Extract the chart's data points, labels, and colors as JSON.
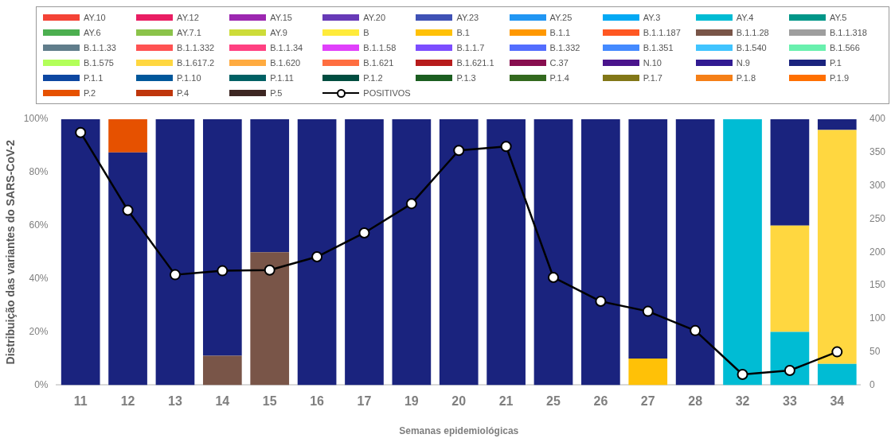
{
  "chart_data": {
    "type": "bar",
    "stacked": true,
    "xlabel": "Semanas epidemiológicas",
    "ylabel": "Distribuição das variantes do SARS-CoV-2",
    "legend": "top",
    "grid": false,
    "categories": [
      "11",
      "12",
      "13",
      "14",
      "15",
      "16",
      "17",
      "19",
      "20",
      "21",
      "25",
      "26",
      "27",
      "28",
      "32",
      "33",
      "34"
    ],
    "ylim": [
      0,
      100
    ],
    "yticks": [
      {
        "value": 0,
        "label": "0%"
      },
      {
        "value": 20,
        "label": "20%"
      },
      {
        "value": 40,
        "label": "40%"
      },
      {
        "value": 60,
        "label": "60%"
      },
      {
        "value": 80,
        "label": "80%"
      },
      {
        "value": 100,
        "label": "100%"
      }
    ],
    "y2lim": [
      0,
      400
    ],
    "y2ticks": [
      0,
      50,
      100,
      150,
      200,
      250,
      300,
      350,
      400
    ],
    "series": [
      {
        "name": "AY.10",
        "color": "#f44336",
        "values": [
          null,
          null,
          null,
          null,
          null,
          null,
          null,
          null,
          null,
          null,
          null,
          null,
          null,
          null,
          null,
          null,
          null
        ]
      },
      {
        "name": "AY.12",
        "color": "#e91e63",
        "values": [
          null,
          null,
          null,
          null,
          null,
          null,
          null,
          null,
          null,
          null,
          null,
          null,
          null,
          null,
          null,
          null,
          null
        ]
      },
      {
        "name": "AY.15",
        "color": "#9c27b0",
        "values": [
          null,
          null,
          null,
          null,
          null,
          null,
          null,
          null,
          null,
          null,
          null,
          null,
          null,
          null,
          null,
          null,
          null
        ]
      },
      {
        "name": "AY.20",
        "color": "#673ab7",
        "values": [
          null,
          null,
          null,
          null,
          null,
          null,
          null,
          null,
          null,
          null,
          null,
          null,
          null,
          null,
          null,
          null,
          null
        ]
      },
      {
        "name": "AY.23",
        "color": "#3f51b5",
        "values": [
          null,
          null,
          null,
          null,
          null,
          null,
          null,
          null,
          null,
          null,
          null,
          null,
          null,
          null,
          null,
          null,
          null
        ]
      },
      {
        "name": "AY.25",
        "color": "#2196f3",
        "values": [
          null,
          null,
          null,
          null,
          null,
          null,
          null,
          null,
          null,
          null,
          null,
          null,
          null,
          null,
          null,
          null,
          null
        ]
      },
      {
        "name": "AY.3",
        "color": "#03a9f4",
        "values": [
          null,
          null,
          null,
          null,
          null,
          null,
          null,
          null,
          null,
          null,
          null,
          null,
          null,
          null,
          null,
          null,
          null
        ]
      },
      {
        "name": "AY.4",
        "color": "#00bcd4",
        "values": [
          null,
          null,
          null,
          null,
          null,
          null,
          null,
          null,
          null,
          null,
          null,
          null,
          null,
          null,
          100,
          20,
          8
        ]
      },
      {
        "name": "AY.5",
        "color": "#009688",
        "values": [
          null,
          null,
          null,
          null,
          null,
          null,
          null,
          null,
          null,
          null,
          null,
          null,
          null,
          null,
          null,
          null,
          null
        ]
      },
      {
        "name": "AY.6",
        "color": "#4caf50",
        "values": [
          null,
          null,
          null,
          null,
          null,
          null,
          null,
          null,
          null,
          null,
          null,
          null,
          null,
          null,
          null,
          null,
          null
        ]
      },
      {
        "name": "AY.7.1",
        "color": "#8bc34a",
        "values": [
          null,
          null,
          null,
          null,
          null,
          null,
          null,
          null,
          null,
          null,
          null,
          null,
          null,
          null,
          null,
          null,
          null
        ]
      },
      {
        "name": "AY.9",
        "color": "#cddc39",
        "values": [
          null,
          null,
          null,
          null,
          null,
          null,
          null,
          null,
          null,
          null,
          null,
          null,
          null,
          null,
          null,
          null,
          null
        ]
      },
      {
        "name": "B",
        "color": "#ffeb3b",
        "values": [
          null,
          null,
          null,
          null,
          null,
          null,
          null,
          null,
          null,
          null,
          null,
          null,
          null,
          null,
          null,
          null,
          null
        ]
      },
      {
        "name": "B.1",
        "color": "#ffc107",
        "values": [
          null,
          null,
          null,
          null,
          null,
          null,
          null,
          null,
          null,
          null,
          null,
          null,
          10,
          null,
          null,
          null,
          null
        ]
      },
      {
        "name": "B.1.1",
        "color": "#ff9800",
        "values": [
          null,
          null,
          null,
          null,
          null,
          null,
          null,
          null,
          null,
          null,
          null,
          null,
          null,
          null,
          null,
          null,
          null
        ]
      },
      {
        "name": "B.1.1.187",
        "color": "#ff5722",
        "values": [
          null,
          null,
          null,
          null,
          null,
          null,
          null,
          null,
          null,
          null,
          null,
          null,
          null,
          null,
          null,
          null,
          null
        ]
      },
      {
        "name": "B.1.1.28",
        "color": "#795548",
        "values": [
          null,
          null,
          null,
          11,
          50,
          null,
          null,
          null,
          null,
          null,
          null,
          null,
          null,
          null,
          null,
          null,
          null
        ]
      },
      {
        "name": "B.1.1.318",
        "color": "#9e9e9e",
        "values": [
          null,
          null,
          null,
          null,
          null,
          null,
          null,
          null,
          null,
          null,
          null,
          null,
          null,
          null,
          null,
          null,
          null
        ]
      },
      {
        "name": "B.1.1.33",
        "color": "#607d8b",
        "values": [
          null,
          null,
          null,
          null,
          null,
          null,
          null,
          null,
          null,
          null,
          null,
          null,
          null,
          null,
          null,
          null,
          null
        ]
      },
      {
        "name": "B.1.1.332",
        "color": "#ff5252",
        "values": [
          null,
          null,
          null,
          null,
          null,
          null,
          null,
          null,
          null,
          null,
          null,
          null,
          null,
          null,
          null,
          null,
          null
        ]
      },
      {
        "name": "B.1.1.34",
        "color": "#ff4081",
        "values": [
          null,
          null,
          null,
          null,
          null,
          null,
          null,
          null,
          null,
          null,
          null,
          null,
          null,
          null,
          null,
          null,
          null
        ]
      },
      {
        "name": "B.1.1.58",
        "color": "#e040fb",
        "values": [
          null,
          null,
          null,
          null,
          null,
          null,
          null,
          null,
          null,
          null,
          null,
          null,
          null,
          null,
          null,
          null,
          null
        ]
      },
      {
        "name": "B.1.1.7",
        "color": "#7c4dff",
        "values": [
          null,
          null,
          null,
          null,
          null,
          null,
          null,
          null,
          null,
          null,
          null,
          null,
          null,
          null,
          null,
          null,
          null
        ]
      },
      {
        "name": "B.1.332",
        "color": "#536dfe",
        "values": [
          null,
          null,
          null,
          null,
          null,
          null,
          null,
          null,
          null,
          null,
          null,
          null,
          null,
          null,
          null,
          null,
          null
        ]
      },
      {
        "name": "B.1.351",
        "color": "#448aff",
        "values": [
          null,
          null,
          null,
          null,
          null,
          null,
          null,
          null,
          null,
          null,
          null,
          null,
          null,
          null,
          null,
          null,
          null
        ]
      },
      {
        "name": "B.1.540",
        "color": "#40c4ff",
        "values": [
          null,
          null,
          null,
          null,
          null,
          null,
          null,
          null,
          null,
          null,
          null,
          null,
          null,
          null,
          null,
          null,
          null
        ]
      },
      {
        "name": "B.1.566",
        "color": "#69f0ae",
        "values": [
          null,
          null,
          null,
          null,
          null,
          null,
          null,
          null,
          null,
          null,
          null,
          null,
          null,
          null,
          null,
          null,
          null
        ]
      },
      {
        "name": "B.1.575",
        "color": "#b2ff59",
        "values": [
          null,
          null,
          null,
          null,
          null,
          null,
          null,
          null,
          null,
          null,
          null,
          null,
          null,
          null,
          null,
          null,
          null
        ]
      },
      {
        "name": "B.1.617.2",
        "color": "#ffd740",
        "values": [
          null,
          null,
          null,
          null,
          null,
          null,
          null,
          null,
          null,
          null,
          null,
          null,
          null,
          null,
          null,
          40,
          88
        ]
      },
      {
        "name": "B.1.620",
        "color": "#ffab40",
        "values": [
          null,
          null,
          null,
          null,
          null,
          null,
          null,
          null,
          null,
          null,
          null,
          null,
          null,
          null,
          null,
          null,
          null
        ]
      },
      {
        "name": "B.1.621",
        "color": "#ff6e40",
        "values": [
          null,
          null,
          null,
          null,
          null,
          null,
          null,
          null,
          null,
          null,
          null,
          null,
          null,
          null,
          null,
          null,
          null
        ]
      },
      {
        "name": "B.1.621.1",
        "color": "#b71c1c",
        "values": [
          null,
          null,
          null,
          null,
          null,
          null,
          null,
          null,
          null,
          null,
          null,
          null,
          null,
          null,
          null,
          null,
          null
        ]
      },
      {
        "name": "C.37",
        "color": "#880e4f",
        "values": [
          null,
          null,
          null,
          null,
          null,
          null,
          null,
          null,
          null,
          null,
          null,
          null,
          null,
          null,
          null,
          null,
          null
        ]
      },
      {
        "name": "N.10",
        "color": "#4a148c",
        "values": [
          null,
          null,
          null,
          null,
          null,
          null,
          null,
          null,
          null,
          null,
          null,
          null,
          null,
          null,
          null,
          null,
          null
        ]
      },
      {
        "name": "N.9",
        "color": "#311b92",
        "values": [
          null,
          null,
          null,
          null,
          null,
          null,
          null,
          null,
          null,
          null,
          null,
          null,
          null,
          null,
          null,
          null,
          null
        ]
      },
      {
        "name": "P.1",
        "color": "#1a237e",
        "values": [
          100,
          87.5,
          100,
          89,
          50,
          100,
          100,
          100,
          100,
          100,
          100,
          100,
          90,
          100,
          null,
          40,
          4
        ]
      },
      {
        "name": "P.1.1",
        "color": "#0d47a1",
        "values": [
          null,
          null,
          null,
          null,
          null,
          null,
          null,
          null,
          null,
          null,
          null,
          null,
          null,
          null,
          null,
          null,
          null
        ]
      },
      {
        "name": "P.1.10",
        "color": "#01579b",
        "values": [
          null,
          null,
          null,
          null,
          null,
          null,
          null,
          null,
          null,
          null,
          null,
          null,
          null,
          null,
          null,
          null,
          null
        ]
      },
      {
        "name": "P.1.11",
        "color": "#006064",
        "values": [
          null,
          null,
          null,
          null,
          null,
          null,
          null,
          null,
          null,
          null,
          null,
          null,
          null,
          null,
          null,
          null,
          null
        ]
      },
      {
        "name": "P.1.2",
        "color": "#004d40",
        "values": [
          null,
          null,
          null,
          null,
          null,
          null,
          null,
          null,
          null,
          null,
          null,
          null,
          null,
          null,
          null,
          null,
          null
        ]
      },
      {
        "name": "P.1.3",
        "color": "#1b5e20",
        "values": [
          null,
          null,
          null,
          null,
          null,
          null,
          null,
          null,
          null,
          null,
          null,
          null,
          null,
          null,
          null,
          null,
          null
        ]
      },
      {
        "name": "P.1.4",
        "color": "#33691e",
        "values": [
          null,
          null,
          null,
          null,
          null,
          null,
          null,
          null,
          null,
          null,
          null,
          null,
          null,
          null,
          null,
          null,
          null
        ]
      },
      {
        "name": "P.1.7",
        "color": "#827717",
        "values": [
          null,
          null,
          null,
          null,
          null,
          null,
          null,
          null,
          null,
          null,
          null,
          null,
          null,
          null,
          null,
          null,
          null
        ]
      },
      {
        "name": "P.1.8",
        "color": "#f57f17",
        "values": [
          null,
          null,
          null,
          null,
          null,
          null,
          null,
          null,
          null,
          null,
          null,
          null,
          null,
          null,
          null,
          null,
          null
        ]
      },
      {
        "name": "P.1.9",
        "color": "#ff6f00",
        "values": [
          null,
          null,
          null,
          null,
          null,
          null,
          null,
          null,
          null,
          null,
          null,
          null,
          null,
          null,
          null,
          null,
          null
        ]
      },
      {
        "name": "P.2",
        "color": "#e65100",
        "values": [
          null,
          12.5,
          null,
          null,
          null,
          null,
          null,
          null,
          null,
          null,
          null,
          null,
          null,
          null,
          null,
          null,
          null
        ]
      },
      {
        "name": "P.4",
        "color": "#bf360c",
        "values": [
          null,
          null,
          null,
          null,
          null,
          null,
          null,
          null,
          null,
          null,
          null,
          null,
          null,
          null,
          null,
          null,
          null
        ]
      },
      {
        "name": "P.5",
        "color": "#3e2723",
        "values": [
          null,
          null,
          null,
          null,
          null,
          null,
          null,
          null,
          null,
          null,
          null,
          null,
          null,
          null,
          null,
          null,
          null
        ]
      },
      {
        "name": "POSITIVOS",
        "type": "line",
        "axis": "y2",
        "marker": "circle",
        "color": "#000000",
        "values": [
          380,
          263,
          166,
          172,
          173,
          193,
          229,
          273,
          353,
          359,
          162,
          126,
          111,
          82,
          16,
          22,
          50
        ]
      }
    ]
  }
}
